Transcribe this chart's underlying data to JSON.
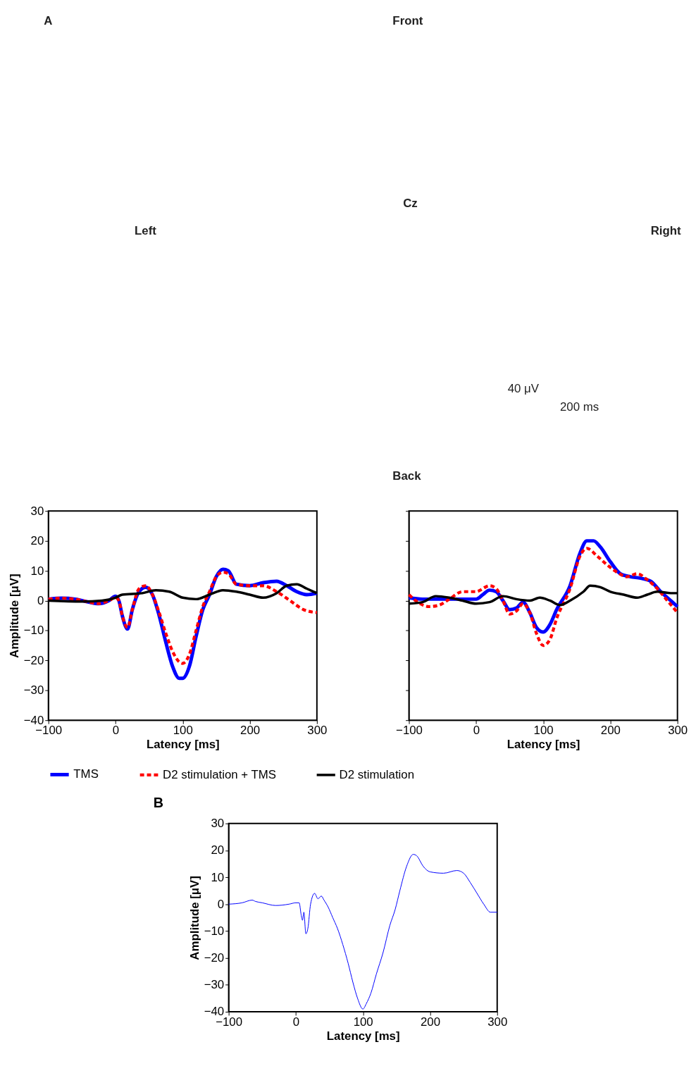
{
  "chart_data": [
    {
      "type": "other",
      "annotations": [
        "A",
        "Front",
        "Left",
        "Right",
        "Cz",
        "Back",
        "40 μV",
        "200 ms"
      ]
    },
    {
      "type": "line",
      "xlabel": "Latency [ms]",
      "ylabel": "Amplitude [μV]",
      "xlim": [
        -100,
        300
      ],
      "xticks": [
        -100,
        0,
        100,
        200,
        300
      ],
      "ylim": [
        -40,
        30
      ],
      "yticks": [
        -40,
        -30,
        -20,
        -10,
        0,
        10,
        20,
        30
      ],
      "legend": "bottom",
      "grid": false,
      "series": [
        {
          "name": "TMS",
          "color": "#0000ff",
          "line_style": "solid",
          "x": [
            -100,
            -80,
            -60,
            -40,
            -25,
            -10,
            0,
            5,
            10,
            18,
            25,
            35,
            45,
            55,
            65,
            75,
            85,
            95,
            100,
            110,
            120,
            130,
            140,
            150,
            160,
            168,
            180,
            200,
            220,
            240,
            255,
            270,
            285,
            300
          ],
          "values": [
            0.5,
            0.8,
            0.5,
            -0.5,
            -1,
            0,
            1.5,
            0,
            -5,
            -9.5,
            -3,
            3,
            4.5,
            2,
            -5,
            -14,
            -22,
            -26,
            -26,
            -22,
            -12,
            -3,
            2,
            8,
            10.5,
            10,
            5.5,
            5,
            6,
            6.5,
            5,
            3,
            2,
            2.5
          ]
        },
        {
          "name": "D2 stimulation + TMS",
          "color": "#ff0000",
          "line_style": "dashed",
          "x": [
            -100,
            -80,
            -60,
            -40,
            -25,
            -10,
            0,
            5,
            10,
            18,
            25,
            35,
            45,
            55,
            65,
            75,
            85,
            95,
            100,
            110,
            120,
            130,
            140,
            150,
            160,
            168,
            180,
            200,
            220,
            240,
            260,
            280,
            300
          ],
          "values": [
            0.5,
            0.8,
            0.5,
            -0.5,
            -1,
            0,
            1,
            0,
            -5,
            -9,
            -3,
            4,
            5,
            2,
            -4,
            -11,
            -17,
            -20.5,
            -21,
            -18,
            -10,
            -2,
            3,
            8,
            9.5,
            9,
            5.5,
            5,
            5,
            3,
            0,
            -3,
            -4
          ]
        },
        {
          "name": "D2 stimulation",
          "color": "#000000",
          "line_style": "solid",
          "x": [
            -100,
            -50,
            -20,
            0,
            10,
            40,
            60,
            80,
            100,
            120,
            140,
            160,
            180,
            200,
            220,
            240,
            255,
            270,
            285,
            300
          ],
          "values": [
            0,
            -0.3,
            0,
            1,
            2,
            2.5,
            3.5,
            3,
            1,
            0.5,
            2,
            3.5,
            3,
            2,
            1,
            2.5,
            5,
            5.5,
            4,
            2.5
          ]
        }
      ]
    },
    {
      "type": "line",
      "xlabel": "Latency [ms]",
      "xlim": [
        -100,
        300
      ],
      "xticks": [
        -100,
        0,
        100,
        200,
        300
      ],
      "ylim": [
        -40,
        30
      ],
      "yticks": [
        -40,
        -30,
        -20,
        -10,
        0,
        10,
        20,
        30
      ],
      "tick_labels": "x",
      "legend": "bottom",
      "grid": false,
      "series": [
        {
          "name": "TMS",
          "color": "#0000ff",
          "line_style": "solid",
          "x": [
            -100,
            -80,
            -60,
            -20,
            0,
            10,
            20,
            30,
            40,
            50,
            60,
            70,
            80,
            90,
            100,
            110,
            120,
            140,
            155,
            165,
            175,
            185,
            200,
            215,
            230,
            245,
            260,
            275,
            290,
            300
          ],
          "values": [
            1,
            0.5,
            0.5,
            0.5,
            0.5,
            2,
            3.5,
            3,
            0,
            -3,
            -2.5,
            -0.5,
            -4,
            -9,
            -10.5,
            -8,
            -3,
            5,
            16,
            20,
            20,
            18,
            13,
            9,
            8,
            7.5,
            6.5,
            3,
            0,
            -2
          ]
        },
        {
          "name": "D2 stimulation + TMS",
          "color": "#ff0000",
          "line_style": "dashed",
          "x": [
            -100,
            -90,
            -70,
            -55,
            -40,
            -20,
            0,
            20,
            30,
            40,
            50,
            60,
            70,
            80,
            90,
            100,
            110,
            120,
            140,
            155,
            165,
            180,
            195,
            210,
            225,
            240,
            255,
            270,
            285,
            300
          ],
          "values": [
            2,
            0,
            -2,
            -1.5,
            0.5,
            3,
            3,
            5,
            4,
            0,
            -4.5,
            -3.5,
            -1,
            -4,
            -11,
            -15,
            -13,
            -6,
            4,
            15,
            17.5,
            15,
            12,
            9.5,
            8,
            9,
            7,
            4,
            0,
            -4
          ]
        },
        {
          "name": "D2 stimulation",
          "color": "#000000",
          "line_style": "solid",
          "x": [
            -100,
            -80,
            -60,
            -40,
            -20,
            0,
            20,
            40,
            60,
            80,
            95,
            110,
            125,
            140,
            160,
            170,
            185,
            200,
            220,
            240,
            255,
            270,
            290,
            300
          ],
          "values": [
            -1,
            -0.5,
            1.5,
            1,
            0,
            -1,
            -0.5,
            1.5,
            0.5,
            0,
            1,
            0,
            -1.5,
            0,
            3,
            5,
            4.5,
            3,
            2,
            1,
            2,
            3,
            2.5,
            2.5
          ]
        }
      ]
    },
    {
      "type": "line",
      "title": "B",
      "xlabel": "Latency [ms]",
      "ylabel": "Amplitude [μV]",
      "xlim": [
        -100,
        300
      ],
      "xticks": [
        -100,
        0,
        100,
        200,
        300
      ],
      "ylim": [
        -40,
        30
      ],
      "yticks": [
        -40,
        -30,
        -20,
        -10,
        0,
        10,
        20,
        30
      ],
      "grid": false,
      "series": [
        {
          "color": "#0000ff",
          "line_style": "solid",
          "x": [
            -100,
            -80,
            -65,
            -60,
            -50,
            -30,
            -10,
            0,
            5,
            8,
            10,
            12,
            15,
            18,
            22,
            28,
            33,
            38,
            42,
            48,
            55,
            62,
            70,
            78,
            85,
            92,
            100,
            105,
            112,
            120,
            130,
            140,
            148,
            155,
            165,
            175,
            180,
            190,
            200,
            220,
            240,
            250,
            260,
            270,
            280,
            290,
            300
          ],
          "values": [
            0,
            0.5,
            1.5,
            1,
            0.5,
            -0.5,
            0,
            0.5,
            0.5,
            -4,
            -6,
            -3,
            -11,
            -9,
            0,
            4,
            2,
            3,
            1.5,
            -1,
            -5,
            -9,
            -15,
            -22,
            -29,
            -35,
            -39,
            -37,
            -33,
            -26,
            -18,
            -8,
            -2,
            5,
            14,
            18.5,
            18,
            14,
            12,
            11.5,
            12.5,
            11.5,
            8,
            4,
            0,
            -3,
            -3
          ]
        }
      ]
    }
  ]
}
